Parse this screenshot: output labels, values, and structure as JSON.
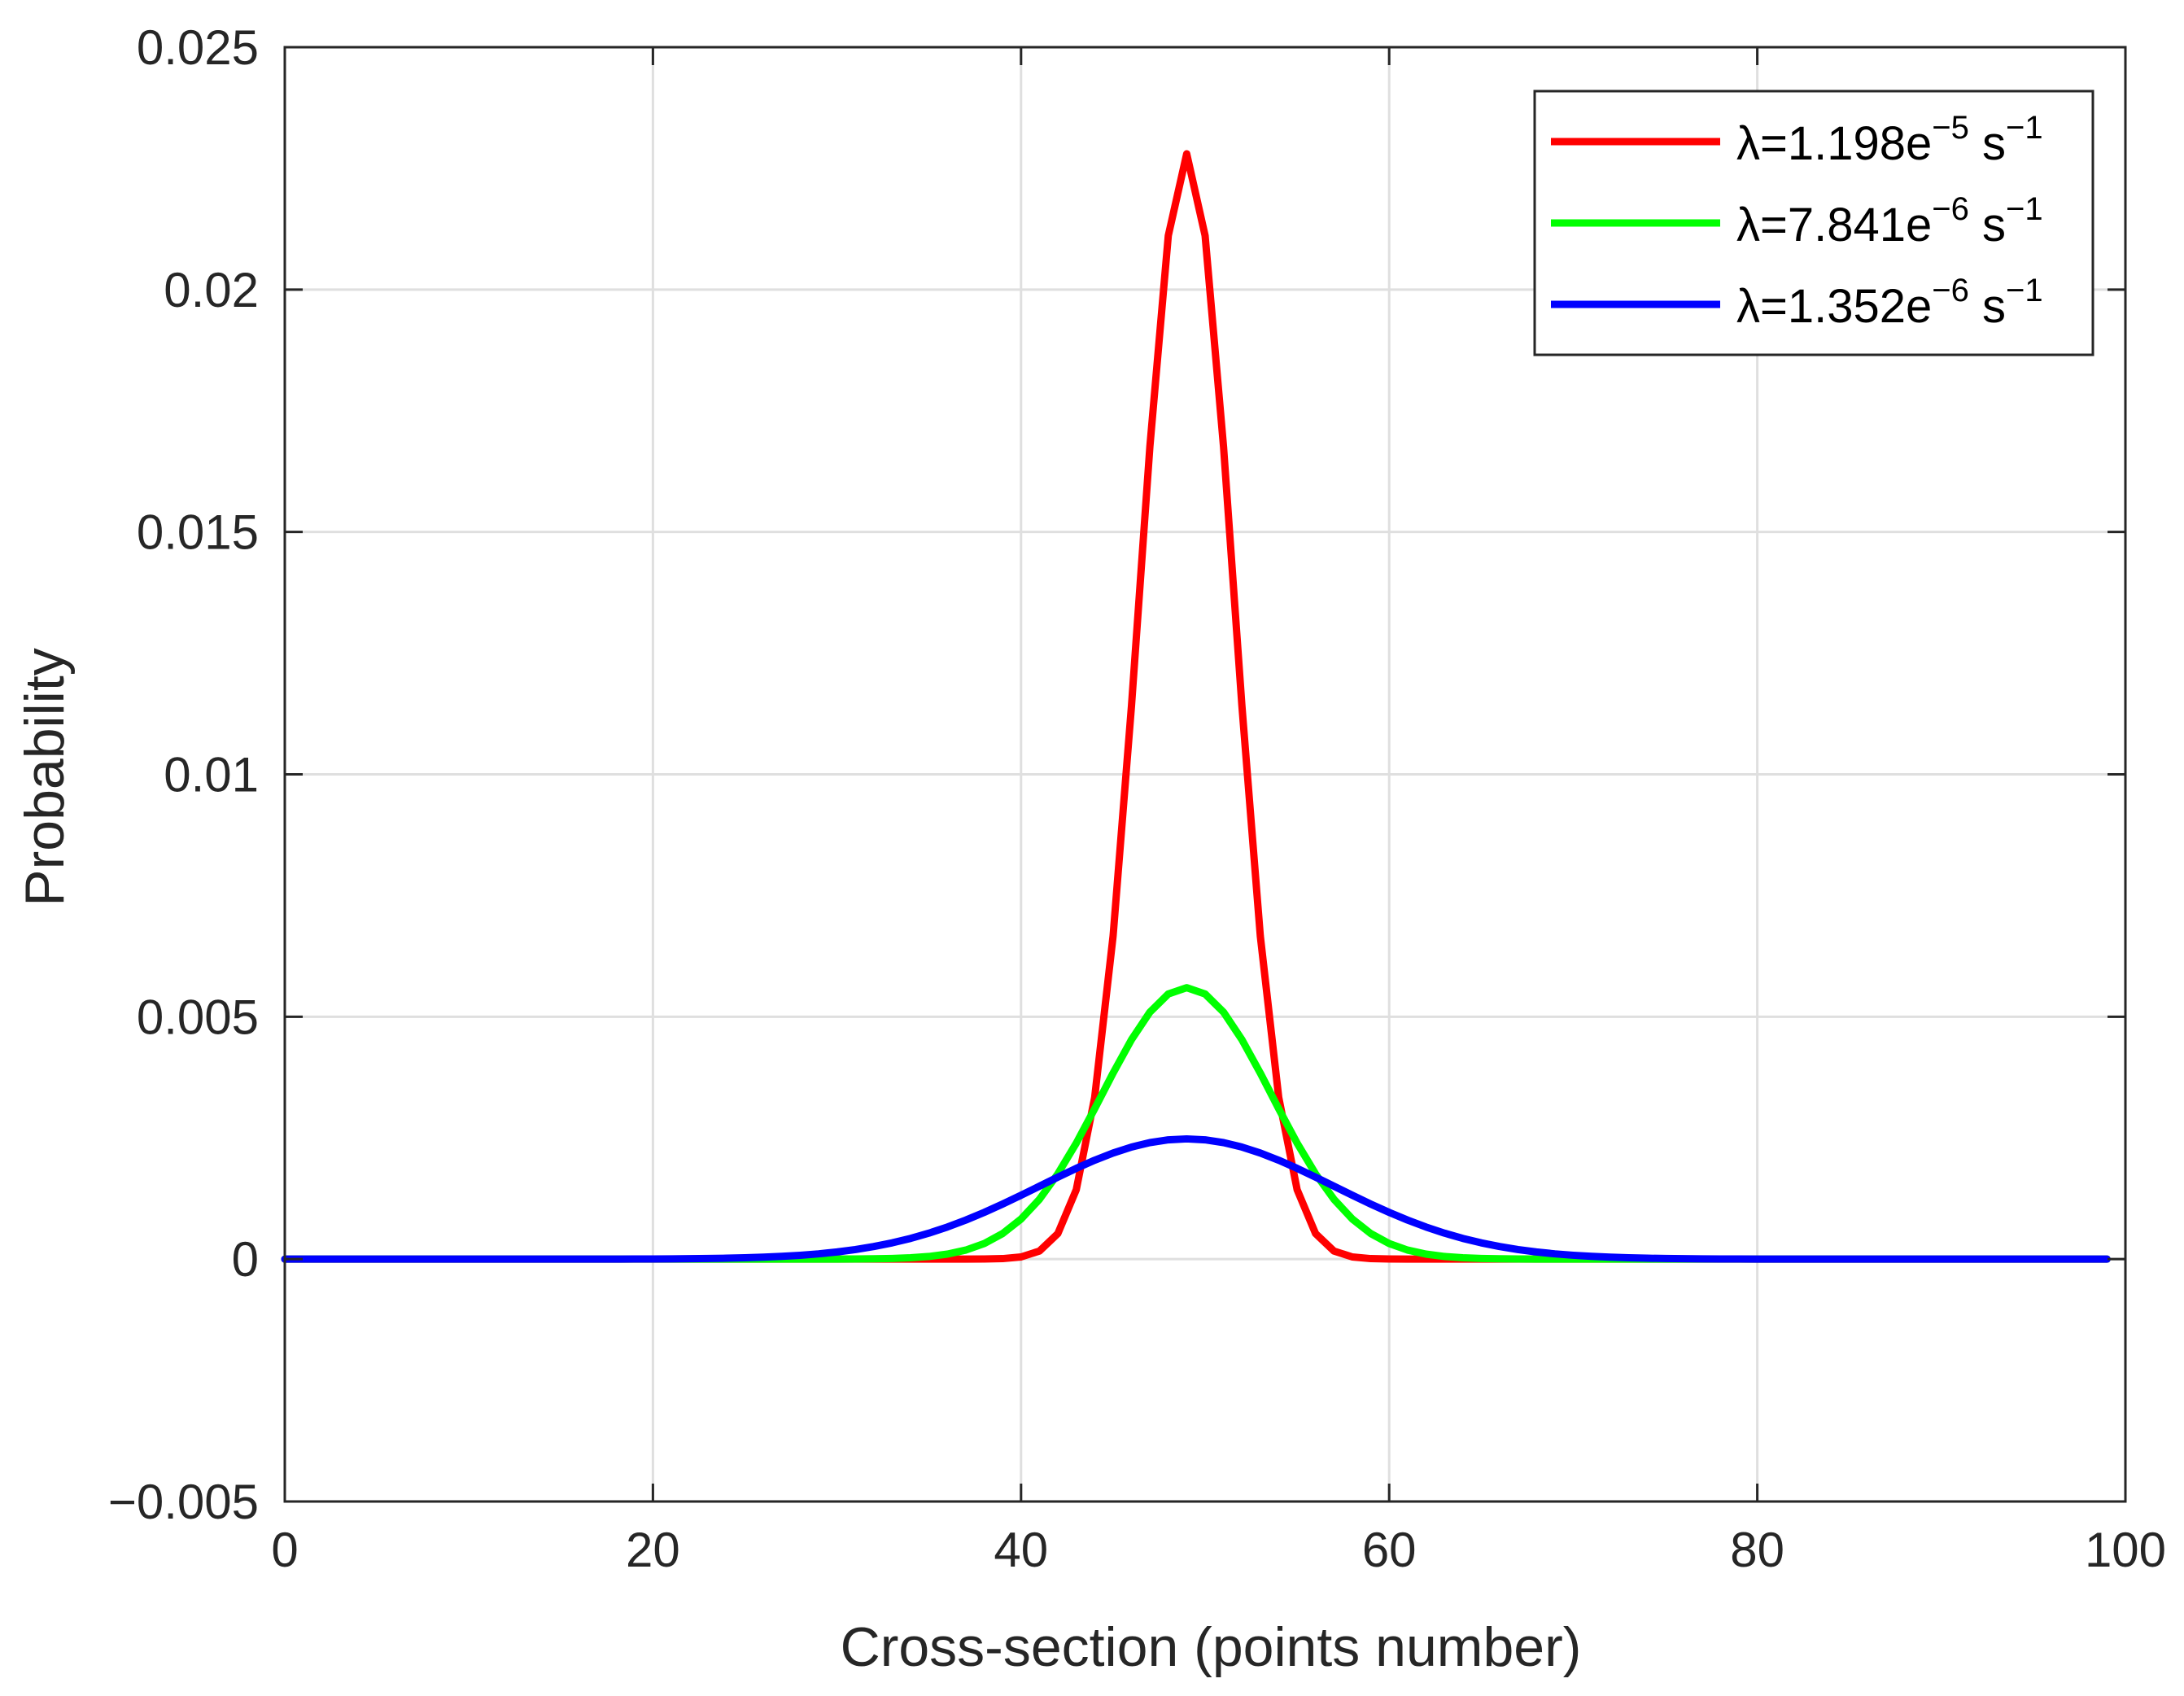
{
  "chart_data": {
    "type": "line",
    "xlabel": "Cross-section (points number)",
    "ylabel": "Probability",
    "xlim": [
      0,
      100
    ],
    "ylim": [
      -0.005,
      0.025
    ],
    "x_ticks": [
      0,
      20,
      40,
      60,
      80,
      100
    ],
    "x_tick_labels": [
      "0",
      "20",
      "40",
      "60",
      "80",
      "100"
    ],
    "y_ticks": [
      -0.005,
      0,
      0.005,
      0.01,
      0.015,
      0.02,
      0.025
    ],
    "y_tick_labels": [
      "−0.005",
      "0",
      "0.005",
      "0.01",
      "0.015",
      "0.02",
      "0.025"
    ],
    "grid": true,
    "legend_position": "top-right",
    "x_range": [
      0,
      99
    ],
    "series": [
      {
        "name": "λ=1.198e−5 s−1",
        "legend_base": "λ=1.198e",
        "legend_exp": "−5",
        "legend_unit": " s",
        "legend_unit_exp": "−1",
        "color": "#ff0000",
        "peak_x": 49,
        "peak_y": 0.0228,
        "sigma": 2.55
      },
      {
        "name": "λ=7.841e−6 s−1",
        "legend_base": "λ=7.841e",
        "legend_exp": "−6",
        "legend_unit": " s",
        "legend_unit_exp": "−1",
        "color": "#00ff00",
        "peak_x": 49,
        "peak_y": 0.0056,
        "sigma": 4.6
      },
      {
        "name": "λ=1.352e−6 s−1",
        "legend_base": "λ=1.352e",
        "legend_exp": "−6",
        "legend_unit": " s",
        "legend_unit_exp": "−1",
        "color": "#0000ff",
        "peak_x": 49,
        "peak_y": 0.00248,
        "sigma": 8.0
      }
    ]
  }
}
